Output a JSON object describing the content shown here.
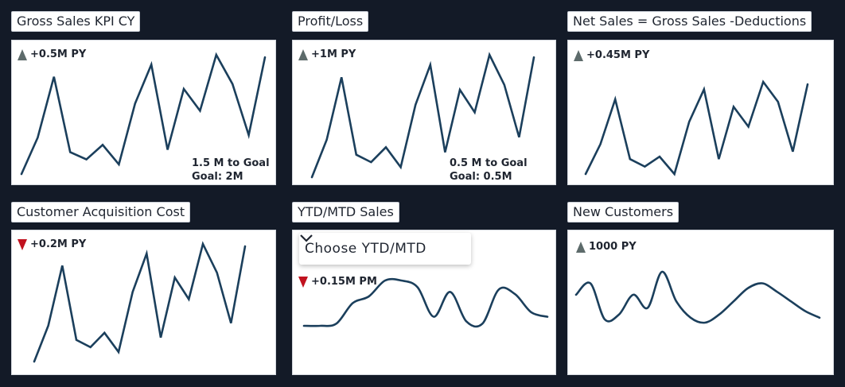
{
  "tiles": [
    {
      "title": "Gross Sales KPI CY",
      "indicator": {
        "direction": "up",
        "text": "+0.5M PY"
      },
      "goal_lines": [
        "1.5 M to Goal",
        "Goal: 2M"
      ],
      "series": [
        4,
        19,
        44,
        13,
        10,
        16,
        8,
        33,
        49,
        14,
        39,
        30,
        53,
        41,
        20,
        52
      ]
    },
    {
      "title": "Profit/Loss",
      "indicator": {
        "direction": "up",
        "text": "+1M PY"
      },
      "goal_lines": [
        "0.5 M to Goal",
        "Goal: 0.5M"
      ],
      "series": [
        4,
        19,
        44,
        13,
        10,
        16,
        8,
        33,
        49,
        14,
        39,
        30,
        53,
        41,
        20,
        52
      ]
    },
    {
      "title": "Net Sales = Gross Sales -Deductions",
      "indicator": {
        "direction": "up",
        "text": "+0.45M PY"
      },
      "goal_lines": [],
      "series": [
        4,
        16,
        34,
        10,
        7,
        11,
        4,
        25,
        38,
        10,
        31,
        23,
        41,
        33,
        13,
        40
      ]
    },
    {
      "title": "Customer Acquisition Cost",
      "indicator": {
        "direction": "down",
        "text": "+0.2M PY"
      },
      "goal_lines": [],
      "series": [
        4,
        19,
        44,
        13,
        10,
        16,
        8,
        33,
        49,
        14,
        39,
        30,
        53,
        41,
        20,
        52
      ]
    },
    {
      "title": "YTD/MTD Sales",
      "indicator": {
        "direction": "down",
        "text": "+0.15M PM"
      },
      "goal_lines": [],
      "series": [
        10,
        10,
        11,
        20,
        23,
        30,
        30,
        27,
        14,
        25,
        12,
        11,
        26,
        24,
        16,
        14
      ],
      "dropdown": {
        "label": "Choose YTD/MTD",
        "icon": "chevron-down-icon"
      }
    },
    {
      "title": "New Customers",
      "indicator": {
        "direction": "up",
        "text": "1000 PY"
      },
      "goal_lines": [],
      "series": [
        28,
        35,
        13,
        16,
        28,
        20,
        42,
        24,
        14,
        11,
        16,
        24,
        32,
        35,
        30,
        24,
        18,
        14
      ]
    }
  ],
  "colors": {
    "background": "#131a27",
    "line": "#1b3f5c",
    "up": "#5d6b6b",
    "down": "#c1121f"
  }
}
